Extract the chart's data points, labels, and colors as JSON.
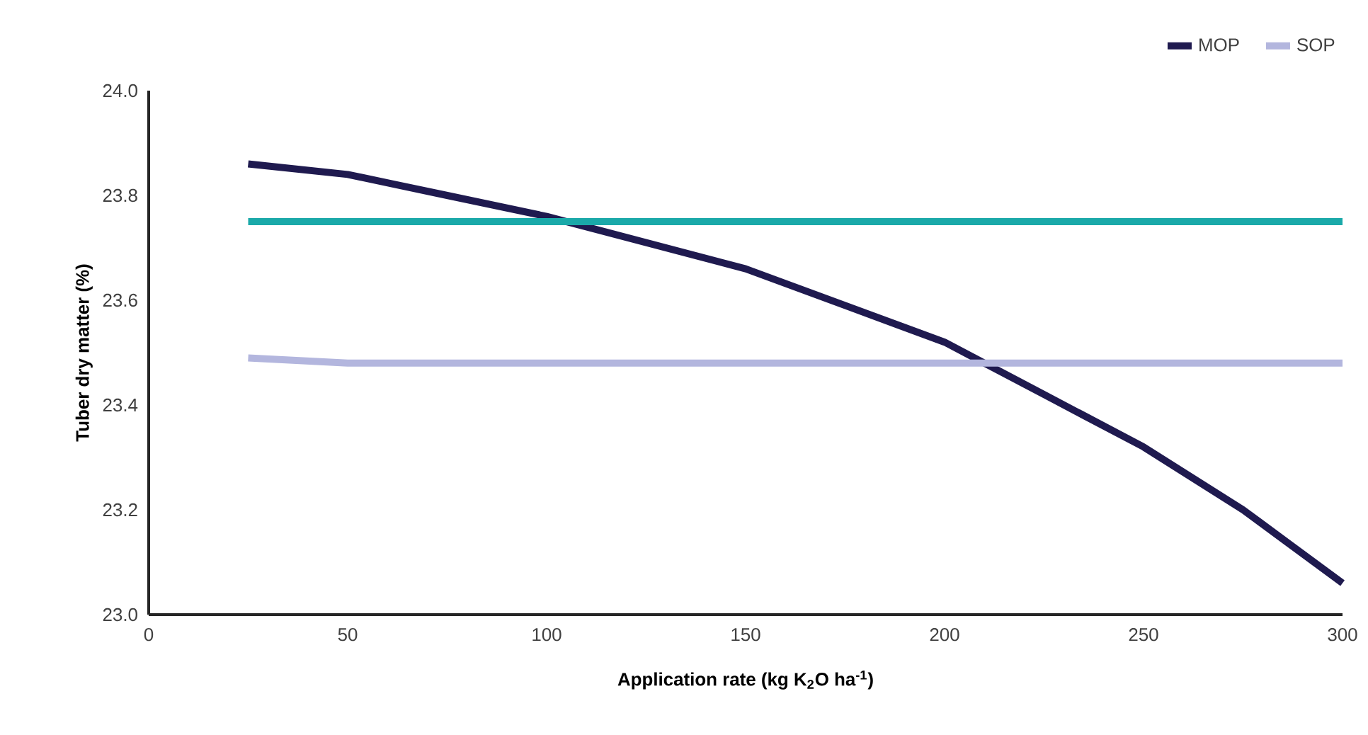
{
  "chart_data": {
    "type": "line",
    "xlabel": "Application rate (kg K$_{2}$O ha$^{-1}$)",
    "ylabel": "Tuber dry matter (%)",
    "x": [
      25,
      50,
      75,
      100,
      125,
      150,
      175,
      200,
      225,
      250,
      275,
      300
    ],
    "series": [
      {
        "name": "MOP",
        "color": "#1f1a4f",
        "values": [
          23.86,
          23.84,
          23.8,
          23.76,
          23.71,
          23.66,
          23.59,
          23.52,
          23.42,
          23.32,
          23.2,
          23.06
        ]
      },
      {
        "name": "SOP",
        "color": "#b3b6de",
        "values": [
          23.49,
          23.48,
          23.48,
          23.48,
          23.48,
          23.48,
          23.48,
          23.48,
          23.48,
          23.48,
          23.48,
          23.48
        ]
      },
      {
        "color": "#1aa9a9",
        "values": [
          23.75,
          23.75,
          23.75,
          23.75,
          23.75,
          23.75,
          23.75,
          23.75,
          23.75,
          23.75,
          23.75,
          23.75
        ]
      }
    ],
    "xlim": [
      0,
      300
    ],
    "xticks": [
      0,
      50,
      100,
      150,
      200,
      250,
      300
    ],
    "ylim": [
      23.0,
      24.0
    ],
    "yticks": [
      {
        "value": 23.0,
        "label": "23.0"
      },
      {
        "value": 23.2,
        "label": "23.2"
      },
      {
        "value": 23.4,
        "label": "23.4"
      },
      {
        "value": 23.6,
        "label": "23.6"
      },
      {
        "value": 23.8,
        "label": "23.8"
      },
      {
        "value": 24.0,
        "label": "24.0"
      }
    ],
    "legend": "top right"
  }
}
